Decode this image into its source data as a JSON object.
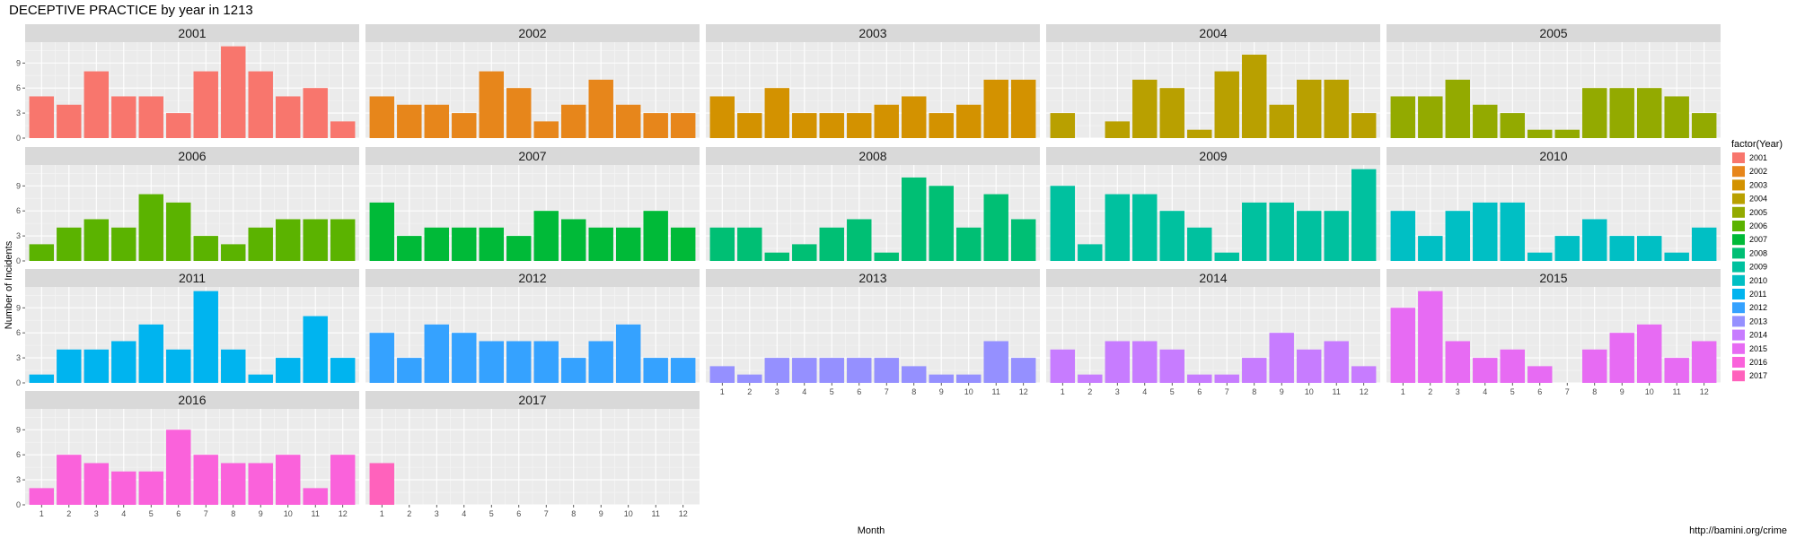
{
  "page": {
    "title": "DECEPTIVE PRACTICE by year in 1213",
    "source": "http://bamini.org/crime"
  },
  "chart_data": {
    "type": "bar",
    "facet_by": "Year",
    "x_label": "Month",
    "y_label": "Number of Incidents",
    "months": [
      "1",
      "2",
      "3",
      "4",
      "5",
      "6",
      "7",
      "8",
      "9",
      "10",
      "11",
      "12"
    ],
    "y_ticks": [
      0,
      3,
      6,
      9
    ],
    "ylim": [
      0,
      11.5
    ],
    "legend": {
      "title": "factor(Year)",
      "position": "right"
    },
    "grid": true,
    "panels": [
      {
        "year": "2001",
        "color": "#F8766D",
        "values": [
          5,
          4,
          8,
          5,
          5,
          3,
          8,
          11,
          8,
          5,
          6,
          2
        ]
      },
      {
        "year": "2002",
        "color": "#E7861B",
        "values": [
          5,
          4,
          4,
          3,
          8,
          6,
          2,
          4,
          7,
          4,
          3,
          3
        ]
      },
      {
        "year": "2003",
        "color": "#D39200",
        "values": [
          5,
          3,
          6,
          3,
          3,
          3,
          4,
          5,
          3,
          4,
          7,
          7
        ]
      },
      {
        "year": "2004",
        "color": "#B9A000",
        "values": [
          3,
          0,
          2,
          7,
          6,
          1,
          8,
          10,
          4,
          7,
          7,
          3
        ]
      },
      {
        "year": "2005",
        "color": "#93AA00",
        "values": [
          5,
          5,
          7,
          4,
          3,
          1,
          1,
          6,
          6,
          6,
          5,
          3
        ]
      },
      {
        "year": "2006",
        "color": "#5BB300",
        "values": [
          2,
          4,
          5,
          4,
          8,
          7,
          3,
          2,
          4,
          5,
          5,
          5
        ]
      },
      {
        "year": "2007",
        "color": "#00BA38",
        "values": [
          7,
          3,
          4,
          4,
          4,
          3,
          6,
          5,
          4,
          4,
          6,
          4
        ]
      },
      {
        "year": "2008",
        "color": "#00BF74",
        "values": [
          4,
          4,
          1,
          2,
          4,
          5,
          1,
          10,
          9,
          4,
          8,
          5
        ]
      },
      {
        "year": "2009",
        "color": "#00C19F",
        "values": [
          9,
          2,
          8,
          8,
          6,
          4,
          1,
          7,
          7,
          6,
          6,
          11
        ]
      },
      {
        "year": "2010",
        "color": "#00BFC4",
        "values": [
          6,
          3,
          6,
          7,
          7,
          1,
          3,
          5,
          3,
          3,
          1,
          4
        ]
      },
      {
        "year": "2011",
        "color": "#00B4EF",
        "values": [
          1,
          4,
          4,
          5,
          7,
          4,
          11,
          4,
          1,
          3,
          8,
          3
        ]
      },
      {
        "year": "2012",
        "color": "#35A2FF",
        "values": [
          6,
          3,
          7,
          6,
          5,
          5,
          5,
          3,
          5,
          7,
          3,
          3
        ]
      },
      {
        "year": "2013",
        "color": "#9590FF",
        "values": [
          2,
          1,
          3,
          3,
          3,
          3,
          3,
          2,
          1,
          1,
          5,
          3
        ]
      },
      {
        "year": "2014",
        "color": "#C77CFF",
        "values": [
          4,
          1,
          5,
          5,
          4,
          1,
          1,
          3,
          6,
          4,
          5,
          2
        ]
      },
      {
        "year": "2015",
        "color": "#E76BF3",
        "values": [
          9,
          11,
          5,
          3,
          4,
          2,
          0,
          4,
          6,
          7,
          3,
          5
        ]
      },
      {
        "year": "2016",
        "color": "#FA62DB",
        "values": [
          2,
          6,
          5,
          4,
          4,
          9,
          6,
          5,
          5,
          6,
          2,
          6
        ]
      },
      {
        "year": "2017",
        "color": "#FF62BC",
        "values": [
          5,
          null,
          null,
          null,
          null,
          null,
          null,
          null,
          null,
          null,
          null,
          null
        ]
      }
    ]
  }
}
